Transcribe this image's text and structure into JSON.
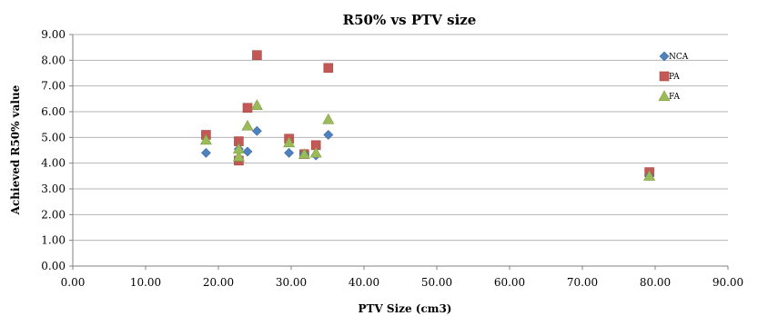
{
  "chart_data": {
    "type": "scatter",
    "title": "R50% vs PTV size",
    "xlabel": "PTV Size (cm3)",
    "ylabel": "Achieved R50% value",
    "xlim": [
      0,
      90
    ],
    "ylim": [
      0,
      9
    ],
    "x_ticks": [
      "0.00",
      "10.00",
      "20.00",
      "30.00",
      "40.00",
      "50.00",
      "60.00",
      "70.00",
      "80.00",
      "90.00"
    ],
    "y_ticks": [
      "0.00",
      "1.00",
      "2.00",
      "3.00",
      "4.00",
      "5.00",
      "6.00",
      "7.00",
      "8.00",
      "9.00"
    ],
    "grid": "horizontal",
    "legend_position": "right",
    "series": [
      {
        "name": "NCA",
        "marker": "diamond",
        "color": "#4f81bd",
        "points": [
          [
            18.3,
            4.4
          ],
          [
            22.8,
            4.55
          ],
          [
            24.0,
            4.45
          ],
          [
            25.3,
            5.25
          ],
          [
            29.7,
            4.4
          ],
          [
            31.8,
            4.35
          ],
          [
            33.4,
            4.3
          ],
          [
            35.1,
            5.1
          ],
          [
            79.2,
            3.5
          ]
        ]
      },
      {
        "name": "PA",
        "marker": "square",
        "color": "#c0504d",
        "points": [
          [
            18.3,
            5.1
          ],
          [
            22.8,
            4.1
          ],
          [
            22.8,
            4.85
          ],
          [
            24.0,
            6.15
          ],
          [
            25.3,
            8.2
          ],
          [
            29.7,
            4.95
          ],
          [
            31.8,
            4.35
          ],
          [
            33.4,
            4.7
          ],
          [
            35.1,
            7.7
          ],
          [
            79.2,
            3.65
          ]
        ]
      },
      {
        "name": "FA",
        "marker": "triangle",
        "color": "#9bbb59",
        "points": [
          [
            18.3,
            4.9
          ],
          [
            22.8,
            4.25
          ],
          [
            22.8,
            4.55
          ],
          [
            24.0,
            5.45
          ],
          [
            25.3,
            6.25
          ],
          [
            29.7,
            4.8
          ],
          [
            31.8,
            4.35
          ],
          [
            33.4,
            4.4
          ],
          [
            35.1,
            5.7
          ],
          [
            79.2,
            3.5
          ]
        ]
      }
    ]
  }
}
